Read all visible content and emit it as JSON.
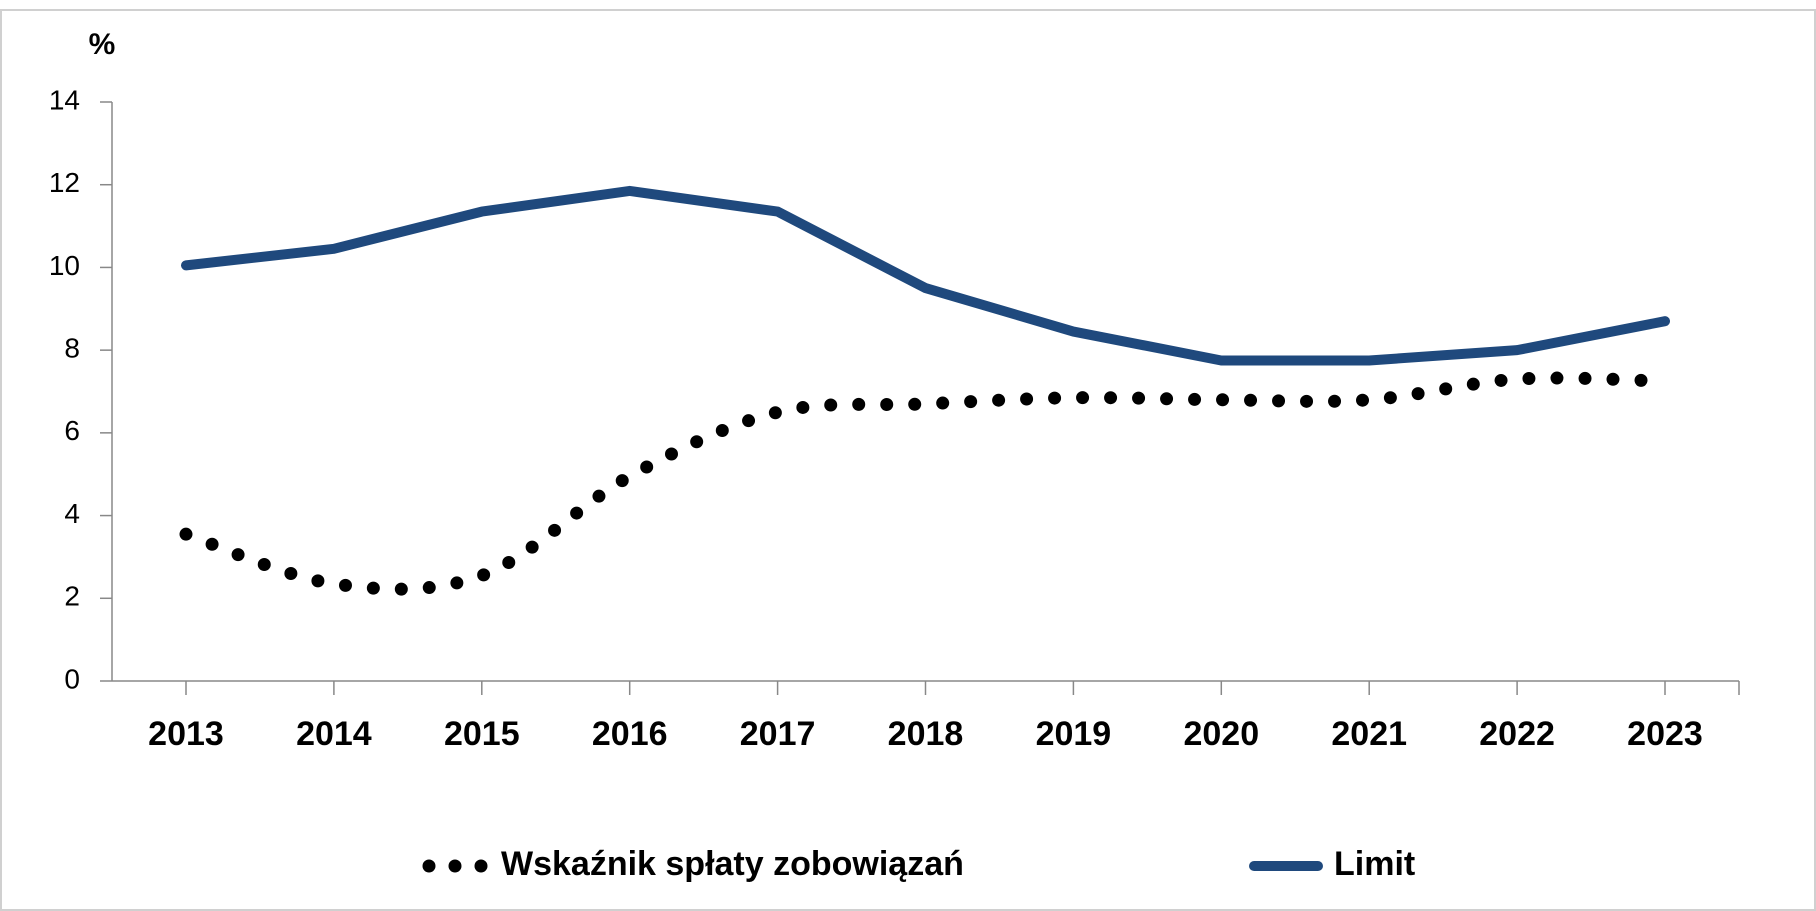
{
  "chart_data": {
    "type": "line",
    "y_label": "%",
    "categories": [
      "2013",
      "2014",
      "2015",
      "2016",
      "2017",
      "2018",
      "2019",
      "2020",
      "2021",
      "2022",
      "2023"
    ],
    "series": [
      {
        "name": "Wskaźnik spłaty zobowiązań",
        "color": "#000000",
        "style": "dotted",
        "values": [
          3.55,
          2.35,
          2.55,
          4.95,
          6.5,
          6.7,
          6.85,
          6.8,
          6.8,
          7.3,
          7.25
        ]
      },
      {
        "name": "Limit",
        "color": "#1f497d",
        "style": "solid",
        "values": [
          10.05,
          10.45,
          11.35,
          11.85,
          11.35,
          9.5,
          8.45,
          7.75,
          7.75,
          8.0,
          8.7
        ]
      }
    ],
    "ylim": [
      0,
      14
    ],
    "yticks": [
      0,
      2,
      4,
      6,
      8,
      10,
      12,
      14
    ],
    "grid": false,
    "legend": "bottom"
  }
}
